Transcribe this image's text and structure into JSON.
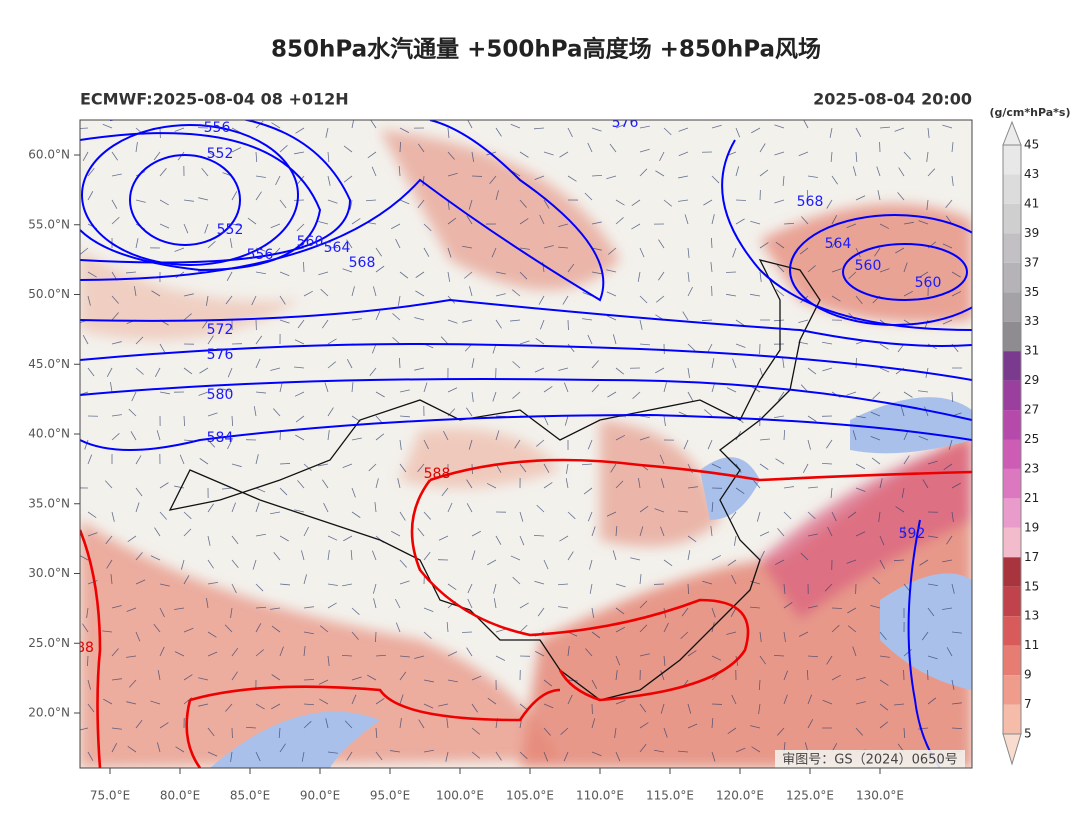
{
  "title": "850hPa水汽通量 +500hPa高度场 +850hPa风场",
  "subtitle_left": "ECMWF:2025-08-04 08 +012H",
  "subtitle_right": "2025-08-04 20:00",
  "colorbar": {
    "unit": "(g/cm*hPa*s)",
    "labels": [
      45,
      43,
      41,
      39,
      37,
      35,
      33,
      31,
      29,
      27,
      25,
      23,
      21,
      19,
      17,
      15,
      13,
      11,
      9,
      7,
      5
    ]
  },
  "lat_labels": [
    "60.0°N",
    "55.0°N",
    "50.0°N",
    "45.0°N",
    "40.0°N",
    "35.0°N",
    "30.0°N",
    "25.0°N",
    "20.0°N"
  ],
  "lon_labels": [
    "75.0°E",
    "80.0°E",
    "85.0°E",
    "90.0°E",
    "95.0°E",
    "100.0°E",
    "105.0°E",
    "110.0°E",
    "115.0°E",
    "120.0°E",
    "125.0°E",
    "130.0°E"
  ],
  "contour_labels": [
    "556",
    "552",
    "552",
    "556",
    "560",
    "564",
    "568",
    "576",
    "572",
    "576",
    "580",
    "584",
    "588",
    "568",
    "564",
    "560",
    "560",
    "592",
    "88"
  ],
  "watermark": "审图号：GS（2024）0650号"
}
